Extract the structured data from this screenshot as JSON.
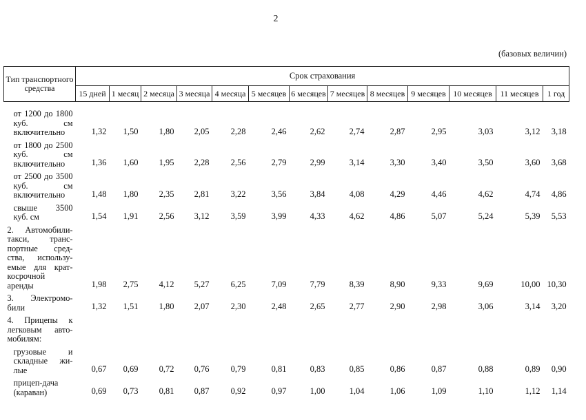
{
  "page_number": "2",
  "unit_note": "(базовых величин)",
  "table": {
    "type_header": "Тип транспортного средства",
    "term_header": "Срок страхования",
    "periods": [
      "15 дней",
      "1 месяц",
      "2 месяца",
      "3 месяца",
      "4 месяца",
      "5 месяцев",
      "6 месяцев",
      "7 месяцев",
      "8 месяцев",
      "9 месяцев",
      "10 месяцев",
      "11 месяцев",
      "1 год"
    ],
    "rows": [
      {
        "label": "от 1200 до 1800 куб. см включительно",
        "values": [
          "1,32",
          "1,50",
          "1,80",
          "2,05",
          "2,28",
          "2,46",
          "2,62",
          "2,74",
          "2,87",
          "2,95",
          "3,03",
          "3,12",
          "3,18"
        ]
      },
      {
        "label": "от 1800 до 2500 куб. см включительно",
        "values": [
          "1,36",
          "1,60",
          "1,95",
          "2,28",
          "2,56",
          "2,79",
          "2,99",
          "3,14",
          "3,30",
          "3,40",
          "3,50",
          "3,60",
          "3,68"
        ]
      },
      {
        "label": "от 2500 до 3500 куб. см включительно",
        "values": [
          "1,48",
          "1,80",
          "2,35",
          "2,81",
          "3,22",
          "3,56",
          "3,84",
          "4,08",
          "4,29",
          "4,46",
          "4,62",
          "4,74",
          "4,86"
        ]
      },
      {
        "label": "свыше 3500 куб. см",
        "values": [
          "1,54",
          "1,91",
          "2,56",
          "3,12",
          "3,59",
          "3,99",
          "4,33",
          "4,62",
          "4,86",
          "5,07",
          "5,24",
          "5,39",
          "5,53"
        ]
      },
      {
        "label": "2. Автомобили-такси, транс-портные сред-ства, использу-емые для крат-косрочной аренды",
        "section": true,
        "values": [
          "1,98",
          "2,75",
          "4,12",
          "5,27",
          "6,25",
          "7,09",
          "7,79",
          "8,39",
          "8,90",
          "9,33",
          "9,69",
          "10,00",
          "10,30"
        ]
      },
      {
        "label": "3. Электромо-били",
        "section": true,
        "values": [
          "1,32",
          "1,51",
          "1,80",
          "2,07",
          "2,30",
          "2,48",
          "2,65",
          "2,77",
          "2,90",
          "2,98",
          "3,06",
          "3,14",
          "3,20"
        ]
      },
      {
        "label": "4. Прицепы к легковым авто-мобилям:",
        "section": true,
        "values": []
      },
      {
        "label": "грузовые и складные жи-лые",
        "values": [
          "0,67",
          "0,69",
          "0,72",
          "0,76",
          "0,79",
          "0,81",
          "0,83",
          "0,85",
          "0,86",
          "0,87",
          "0,88",
          "0,89",
          "0,90"
        ]
      },
      {
        "label": "прицеп-дача (караван)",
        "values": [
          "0,69",
          "0,73",
          "0,81",
          "0,87",
          "0,92",
          "0,97",
          "1,00",
          "1,04",
          "1,06",
          "1,09",
          "1,10",
          "1,12",
          "1,14"
        ]
      }
    ]
  }
}
